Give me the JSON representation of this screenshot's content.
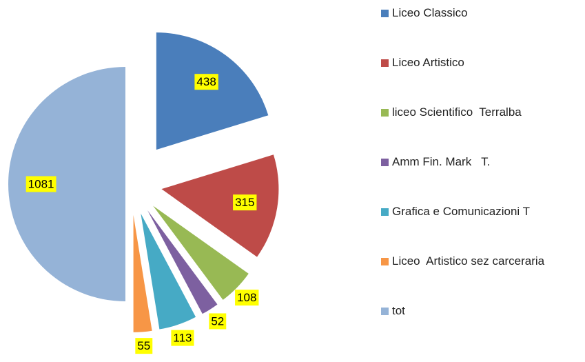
{
  "chart_data": {
    "type": "pie",
    "categories": [
      "Liceo Classico",
      "Liceo Artistico",
      "liceo Scientifico  Terralba",
      "Amm Fin. Mark   T.",
      "Grafica e Comunicazioni T",
      "Liceo  Artistico sez carceraria",
      "tot"
    ],
    "values": [
      438,
      315,
      108,
      52,
      113,
      55,
      1081
    ],
    "colors": [
      "#4a7ebb",
      "#be4b48",
      "#98b954",
      "#7d60a0",
      "#46aac5",
      "#f79646",
      "#95b3d7"
    ],
    "legend": "right"
  }
}
